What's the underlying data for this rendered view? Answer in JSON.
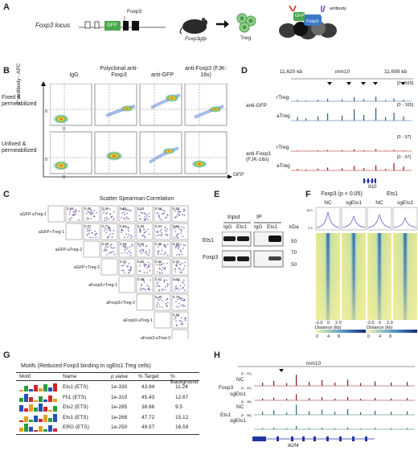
{
  "figure": {
    "panel_labels": [
      "A",
      "B",
      "C",
      "D",
      "E",
      "F",
      "G",
      "H"
    ]
  },
  "panelA": {
    "locus_label": "Foxp3 locus",
    "gfp_label": "GFP",
    "foxp3_label": "Foxp3",
    "mouse_label": "Foxp3gfp",
    "treg_label": "Treg",
    "antibody_label": "antibody",
    "gfp_small": "GFP",
    "foxp3_small": "Foxp3"
  },
  "panelB": {
    "columns": [
      "IgG",
      "Polyclonal anti-Foxp3",
      "anti-GFP",
      "anti-Foxp3 (FJK-16s)"
    ],
    "rows": [
      "Fixed & permeabilized",
      "Unfixed & permeabilized"
    ],
    "y_axis": "2° antibody - APC",
    "x_axis": "GFP",
    "tick_zero": "0"
  },
  "panelC": {
    "title": "Scatter Spearman Correlation",
    "samples": [
      "aGFP-aTreg-1",
      "aGFP-rTreg-1",
      "aGFP-aTreg-2",
      "aGFP-rTreg-2",
      "aFoxp3-rTreg-1",
      "aFoxp3-rTreg-2",
      "aFoxp3-aTreg-1",
      "aFoxp3-aTreg-2"
    ],
    "values": [
      [
        "0.68",
        "0.86",
        "0.66",
        "0.55",
        "0.53",
        "0.54",
        "0.67"
      ],
      [
        "0.67",
        "0.72",
        "0.61",
        "0.56",
        "0.53",
        "0.55"
      ],
      [
        "0.66",
        "0.56",
        "0.54",
        "0.55",
        "0.69"
      ],
      [
        "0.62",
        "0.56",
        "0.54",
        "0.53"
      ],
      [
        "0.68",
        "0.52",
        "0.54"
      ],
      [
        "0.46",
        "0.76"
      ],
      [
        "0.54"
      ]
    ]
  },
  "panelD": {
    "coord_left": "11,620 kb",
    "genome": "mm10",
    "coord_right": "11,699 kb",
    "groups": [
      {
        "name": "anti-GFP",
        "tracks": [
          "rTreg",
          "aTreg"
        ],
        "range": "[0 - 165]",
        "color": "#2c5d8a"
      },
      {
        "name": "anti-Foxp3 (FJK-16s)",
        "tracks": [
          "rTreg",
          "aTreg"
        ],
        "range": "[0 - 97]",
        "color": "#a3171b"
      }
    ],
    "gene": "Il10"
  },
  "panelE": {
    "input_label": "Input",
    "ip_label": "IP",
    "lanes": [
      "IgG",
      "Ets1",
      "IgG",
      "Ets1"
    ],
    "rows": [
      "Ets1",
      "Foxp3"
    ],
    "kda_label": "kDa",
    "markers": [
      "50",
      "70",
      "50"
    ]
  },
  "panelF": {
    "group_left": "Foxp3 (p < 0.05)",
    "group_right": "Ets1",
    "conditions": [
      "NC",
      "sgEts1",
      "NC",
      "sgEts1"
    ],
    "ticks": [
      "-2.0",
      "0",
      "2.0"
    ],
    "x_axis": "Distance (kb)",
    "scale": [
      "0",
      "4",
      "8"
    ],
    "profile_ticks": [
      "15.0",
      "12.5",
      "10.0",
      "7.5",
      "5.0",
      "2.5"
    ]
  },
  "panelG": {
    "title": "Motifs (Reduced Foxp3 binding in sgEts1 Treg cells)",
    "headers": [
      "Motif",
      "Name",
      "p value",
      "% Target",
      "% Background"
    ],
    "rows": [
      {
        "name": "Ets1 (ETS)",
        "p": "1e-330",
        "target": "43.94",
        "background": "11.24"
      },
      {
        "name": "Fli1 (ETS)",
        "p": "1e-310",
        "target": "45.43",
        "background": "12.67"
      },
      {
        "name": "Etv2 (ETS)",
        "p": "1e-285",
        "target": "38.86",
        "background": "9.5"
      },
      {
        "name": "Etv1 (ETS)",
        "p": "1e-268",
        "target": "47.72",
        "background": "15.12"
      },
      {
        "name": "ERG (ETS)",
        "p": "1e-250",
        "target": "49.57",
        "background": "16.59"
      }
    ]
  },
  "panelH": {
    "genome": "mm10",
    "groups": [
      {
        "name": "Foxp3",
        "tracks": [
          "NC",
          "sgEts1"
        ],
        "range": "[0 - 32]",
        "color": "#8c1c22"
      },
      {
        "name": "Ets1",
        "tracks": [
          "NC",
          "sgEts1"
        ],
        "range": "[0 - 38]",
        "color": "#2a6e6e"
      }
    ],
    "gene": "Ikzf4"
  }
}
